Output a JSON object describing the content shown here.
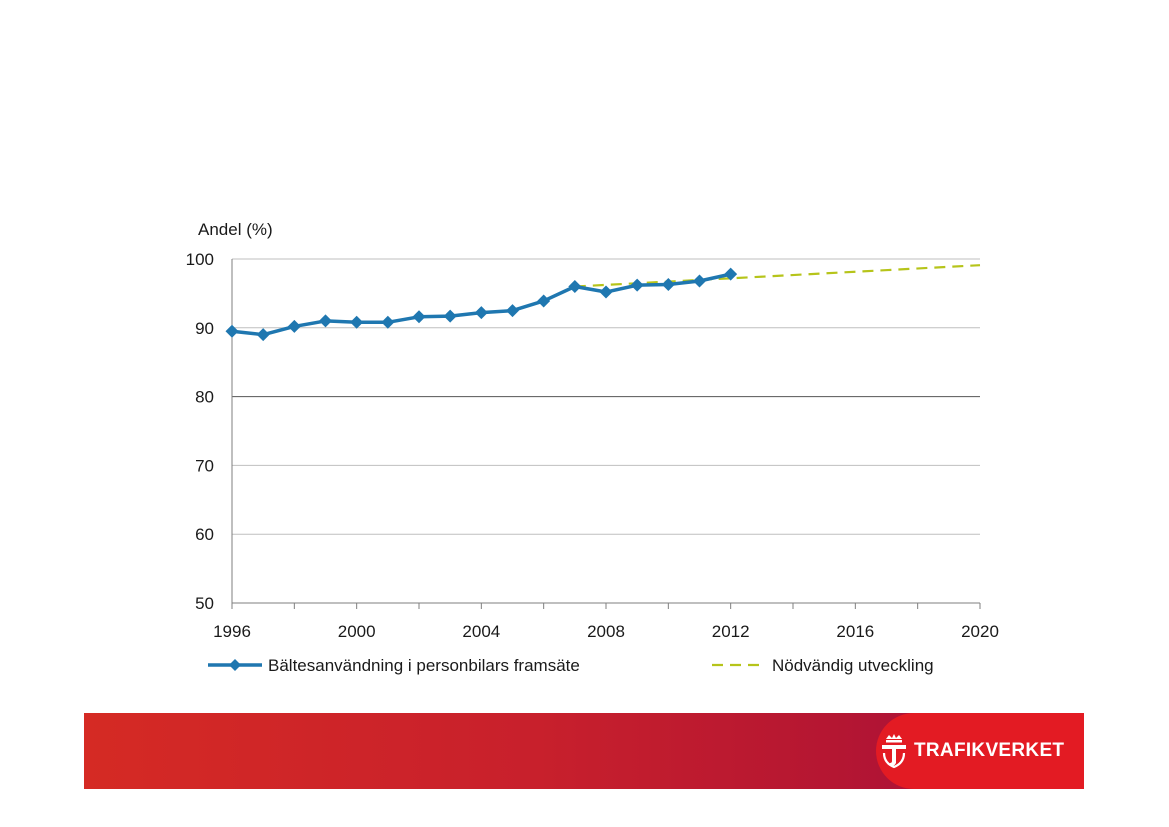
{
  "chart_data": {
    "type": "line",
    "ylabel": "Andel (%)",
    "ylim": [
      50,
      100
    ],
    "yticks": [
      50,
      60,
      70,
      80,
      90,
      100
    ],
    "xlim": [
      1996,
      2020
    ],
    "xticks": [
      1996,
      2000,
      2004,
      2008,
      2012,
      2016,
      2020
    ],
    "grid": true,
    "legend_position": "bottom",
    "series": [
      {
        "name": "Bältesanvändning i personbilars framsäte",
        "style": "solid-diamond",
        "color": "#1f77b0",
        "x": [
          1996,
          1997,
          1998,
          1999,
          2000,
          2001,
          2002,
          2003,
          2004,
          2005,
          2006,
          2007,
          2008,
          2009,
          2010,
          2011,
          2012
        ],
        "y": [
          89.5,
          89.0,
          90.2,
          91.0,
          90.8,
          90.8,
          91.6,
          91.7,
          92.2,
          92.5,
          93.9,
          96.0,
          95.2,
          96.2,
          96.3,
          96.8,
          97.8
        ]
      },
      {
        "name": "Nödvändig utveckling",
        "style": "dashed",
        "color": "#b6c41a",
        "x": [
          2007,
          2020
        ],
        "y": [
          96.0,
          99.1
        ]
      }
    ]
  },
  "footer": {
    "brand": "TRAFIKVERKET",
    "logo_icon": "crown-t-icon"
  }
}
